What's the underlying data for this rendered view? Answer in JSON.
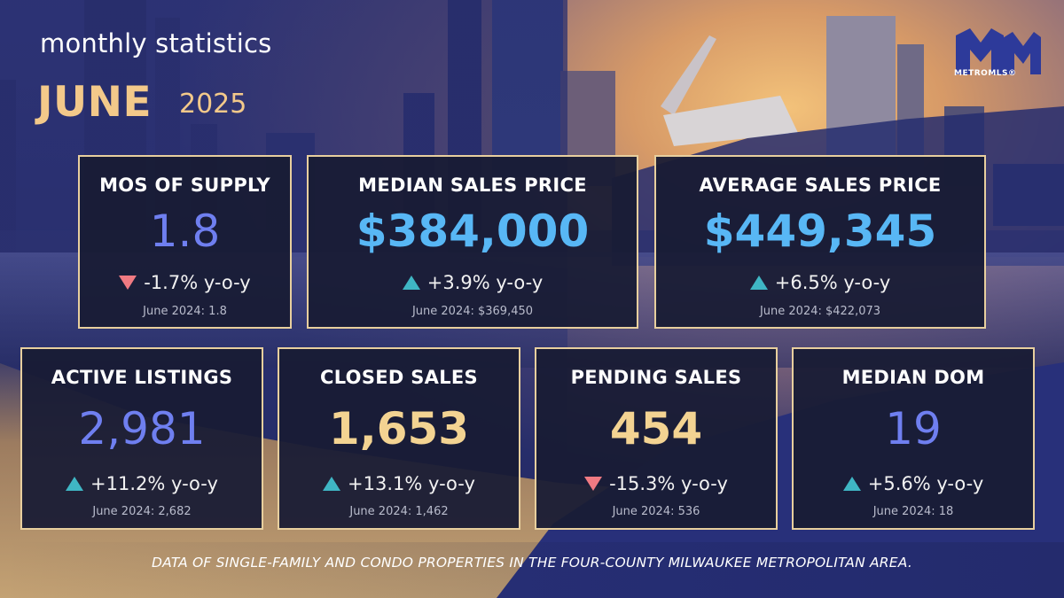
{
  "header": {
    "heading": "monthly statistics",
    "month": "JUNE",
    "year": "2025"
  },
  "logo": {
    "text": "METROMLS®",
    "icon": "metromls-logo-icon",
    "color": "#2d3a9a"
  },
  "colors": {
    "value_blue": "#6f7ff0",
    "value_light_blue": "#58b7f5",
    "value_gold": "#f3d392",
    "arrow_up": "#3fb6c4",
    "arrow_down": "#f07a82",
    "card_border": "#e8cf9e"
  },
  "cards": [
    {
      "label": "MOS OF SUPPLY",
      "value": "1.8",
      "change": "-1.7% y-o-y",
      "direction": "down",
      "prior": "June 2024: 1.8"
    },
    {
      "label": "MEDIAN SALES PRICE",
      "value": "$384,000",
      "change": "+3.9% y-o-y",
      "direction": "up",
      "prior": "June 2024: $369,450"
    },
    {
      "label": "AVERAGE SALES PRICE",
      "value": "$449,345",
      "change": "+6.5% y-o-y",
      "direction": "up",
      "prior": "June 2024: $422,073"
    },
    {
      "label": "ACTIVE LISTINGS",
      "value": "2,981",
      "change": "+11.2% y-o-y",
      "direction": "up",
      "prior": "June 2024: 2,682"
    },
    {
      "label": "CLOSED SALES",
      "value": "1,653",
      "change": "+13.1% y-o-y",
      "direction": "up",
      "prior": "June 2024: 1,462"
    },
    {
      "label": "PENDING SALES",
      "value": "454",
      "change": "-15.3% y-o-y",
      "direction": "down",
      "prior": "June 2024: 536"
    },
    {
      "label": "MEDIAN DOM",
      "value": "19",
      "change": "+5.6% y-o-y",
      "direction": "up",
      "prior": "June 2024: 18"
    }
  ],
  "footer": "DATA OF SINGLE-FAMILY AND CONDO PROPERTIES IN THE FOUR-COUNTY MILWAUKEE METROPOLITAN AREA."
}
